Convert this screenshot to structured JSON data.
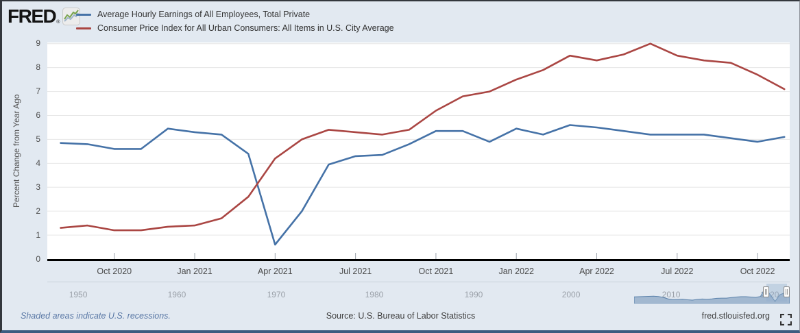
{
  "header": {
    "logo_text": "FRED",
    "registered_mark": "®",
    "logo_icon": "line-chart-icon"
  },
  "chart_data": {
    "type": "line",
    "title": "",
    "ylabel": "Percent Change from Year Ago",
    "ylim": [
      0,
      9.05
    ],
    "yticks": [
      0,
      1,
      2,
      3,
      4,
      5,
      6,
      7,
      8,
      9
    ],
    "grid": true,
    "legend_position": "top-left-header",
    "categories": [
      "Aug 2020",
      "Sep 2020",
      "Oct 2020",
      "Nov 2020",
      "Dec 2020",
      "Jan 2021",
      "Feb 2021",
      "Mar 2021",
      "Apr 2021",
      "May 2021",
      "Jun 2021",
      "Jul 2021",
      "Aug 2021",
      "Sep 2021",
      "Oct 2021",
      "Nov 2021",
      "Dec 2021",
      "Jan 2022",
      "Feb 2022",
      "Mar 2022",
      "Apr 2022",
      "May 2022",
      "Jun 2022",
      "Jul 2022",
      "Aug 2022",
      "Sep 2022",
      "Oct 2022",
      "Nov 2022"
    ],
    "x_axis": {
      "tick_indices": [
        2,
        5,
        8,
        11,
        14,
        17,
        20,
        23,
        26
      ],
      "tick_labels": [
        "Oct 2020",
        "Jan 2021",
        "Apr 2021",
        "Jul 2021",
        "Oct 2021",
        "Jan 2022",
        "Apr 2022",
        "Jul 2022",
        "Oct 2022"
      ],
      "offset_months": 0.5,
      "total_months": 27.7
    },
    "series": [
      {
        "name": "Average Hourly Earnings of All Employees, Total Private",
        "color": "#4572a7",
        "values": [
          4.85,
          4.8,
          4.6,
          4.6,
          5.45,
          5.3,
          5.2,
          4.4,
          0.6,
          2.0,
          3.95,
          4.3,
          4.35,
          4.8,
          5.35,
          5.35,
          4.9,
          5.45,
          5.2,
          5.6,
          5.5,
          5.35,
          5.2,
          5.2,
          5.2,
          5.05,
          4.9,
          5.1
        ]
      },
      {
        "name": "Consumer Price Index for All Urban Consumers: All Items in U.S. City Average",
        "color": "#aa4643",
        "values": [
          1.3,
          1.4,
          1.2,
          1.2,
          1.35,
          1.4,
          1.7,
          2.6,
          4.2,
          5.0,
          5.4,
          5.3,
          5.2,
          5.4,
          6.2,
          6.8,
          7.0,
          7.5,
          7.9,
          8.5,
          8.3,
          8.55,
          9.0,
          8.5,
          8.3,
          8.2,
          7.7,
          7.1
        ]
      }
    ]
  },
  "range_slider": {
    "decades": [
      {
        "label": "1950",
        "frac": 0.0416
      },
      {
        "label": "1960",
        "frac": 0.1745
      },
      {
        "label": "1970",
        "frac": 0.3084
      },
      {
        "label": "1980",
        "frac": 0.4404
      },
      {
        "label": "1990",
        "frac": 0.5743
      },
      {
        "label": "2000",
        "frac": 0.7055
      },
      {
        "label": "2010",
        "frac": 0.8403
      },
      {
        "label": "2020",
        "frac": 0.9733
      }
    ],
    "handles": {
      "left_frac": 0.9686,
      "right_frac": 0.9963
    },
    "mini_chart": {
      "start_frac": 0.7905,
      "color": "#6e8fb5",
      "vmax": 8.3,
      "values": [
        3.3,
        3.4,
        3.5,
        3.6,
        3.7,
        3.5,
        3.0,
        2.2,
        1.8,
        1.9,
        2.0,
        1.7,
        1.5,
        1.9,
        2.1,
        2.0,
        2.2,
        2.5,
        2.6,
        2.6,
        2.9,
        3.2,
        3.4,
        3.4,
        3.2,
        3.0,
        3.5,
        8.0,
        4.6,
        0.8,
        4.5,
        5.5,
        5.1
      ]
    }
  },
  "footer": {
    "recessions_note": "Shaded areas indicate U.S. recessions.",
    "source": "Source: U.S. Bureau of Labor Statistics",
    "site_link": "fred.stlouisfed.org",
    "fullscreen_icon": "expand-icon"
  },
  "colors": {
    "background": "#e2e9f1",
    "plot_background": "#ffffff",
    "gridline": "#e6e6e6",
    "axis_line": "#000000",
    "tick_mark": "#9aa2ab",
    "tick_text": "#4a4a4a",
    "decade_text": "#9aa0a8",
    "link_text": "#5b79a6"
  }
}
